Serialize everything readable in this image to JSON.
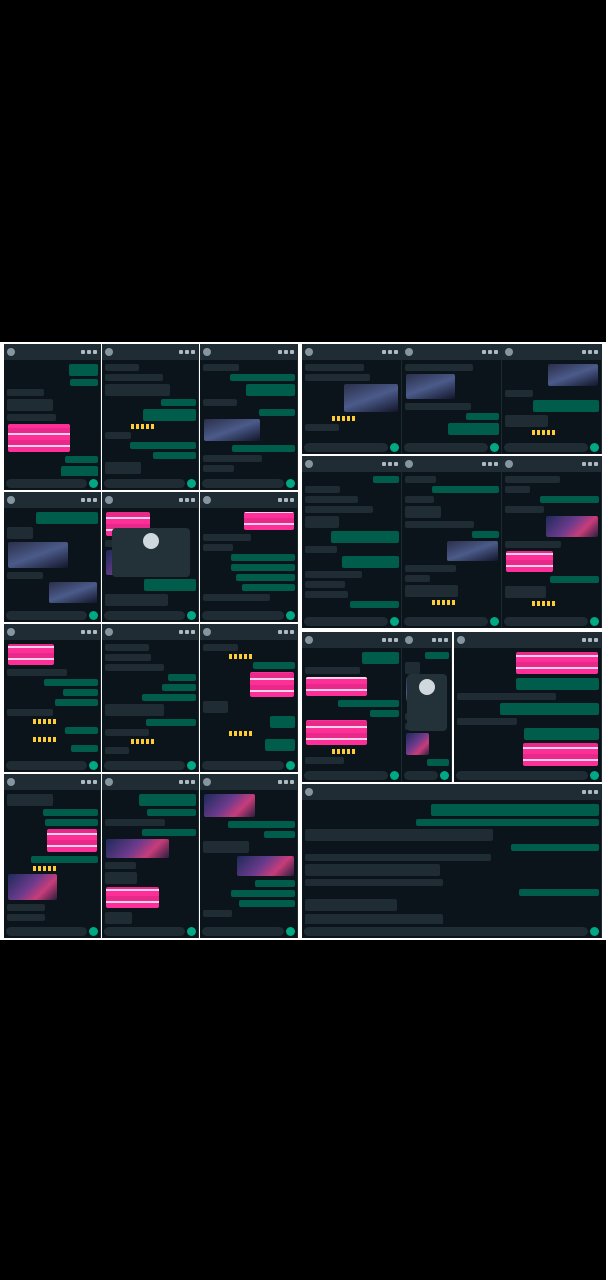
{
  "screen": {
    "background": "#000000",
    "collage_border": "#ffffff"
  },
  "colors": {
    "chat_bg": "#0b141a",
    "header_bg": "#1f2c33",
    "bubble_in": "#202c33",
    "bubble_out": "#005c4b",
    "accent_green": "#00a884",
    "promo_pink": "#ff2f9a"
  },
  "icons": {
    "avatar": "user-avatar-icon",
    "call": "phone-call-icon",
    "video": "video-call-icon",
    "menu": "kebab-menu-icon",
    "send": "microphone-send-icon"
  },
  "panels": [
    {
      "name": "chat-panel-1"
    },
    {
      "name": "chat-panel-2"
    },
    {
      "name": "chat-panel-3"
    },
    {
      "name": "chat-panel-4"
    },
    {
      "name": "chat-panel-5"
    },
    {
      "name": "chat-panel-6"
    },
    {
      "name": "chat-panel-7"
    },
    {
      "name": "chat-panel-8"
    },
    {
      "name": "chat-panel-9"
    },
    {
      "name": "chat-panel-10"
    },
    {
      "name": "chat-panel-11"
    },
    {
      "name": "chat-panel-12"
    },
    {
      "name": "chat-panel-13"
    },
    {
      "name": "chat-panel-14"
    },
    {
      "name": "chat-panel-15"
    },
    {
      "name": "chat-panel-16"
    },
    {
      "name": "chat-panel-17"
    },
    {
      "name": "chat-panel-18"
    },
    {
      "name": "chat-panel-19"
    },
    {
      "name": "chat-panel-20"
    },
    {
      "name": "chat-panel-21"
    },
    {
      "name": "chat-panel-22"
    }
  ]
}
